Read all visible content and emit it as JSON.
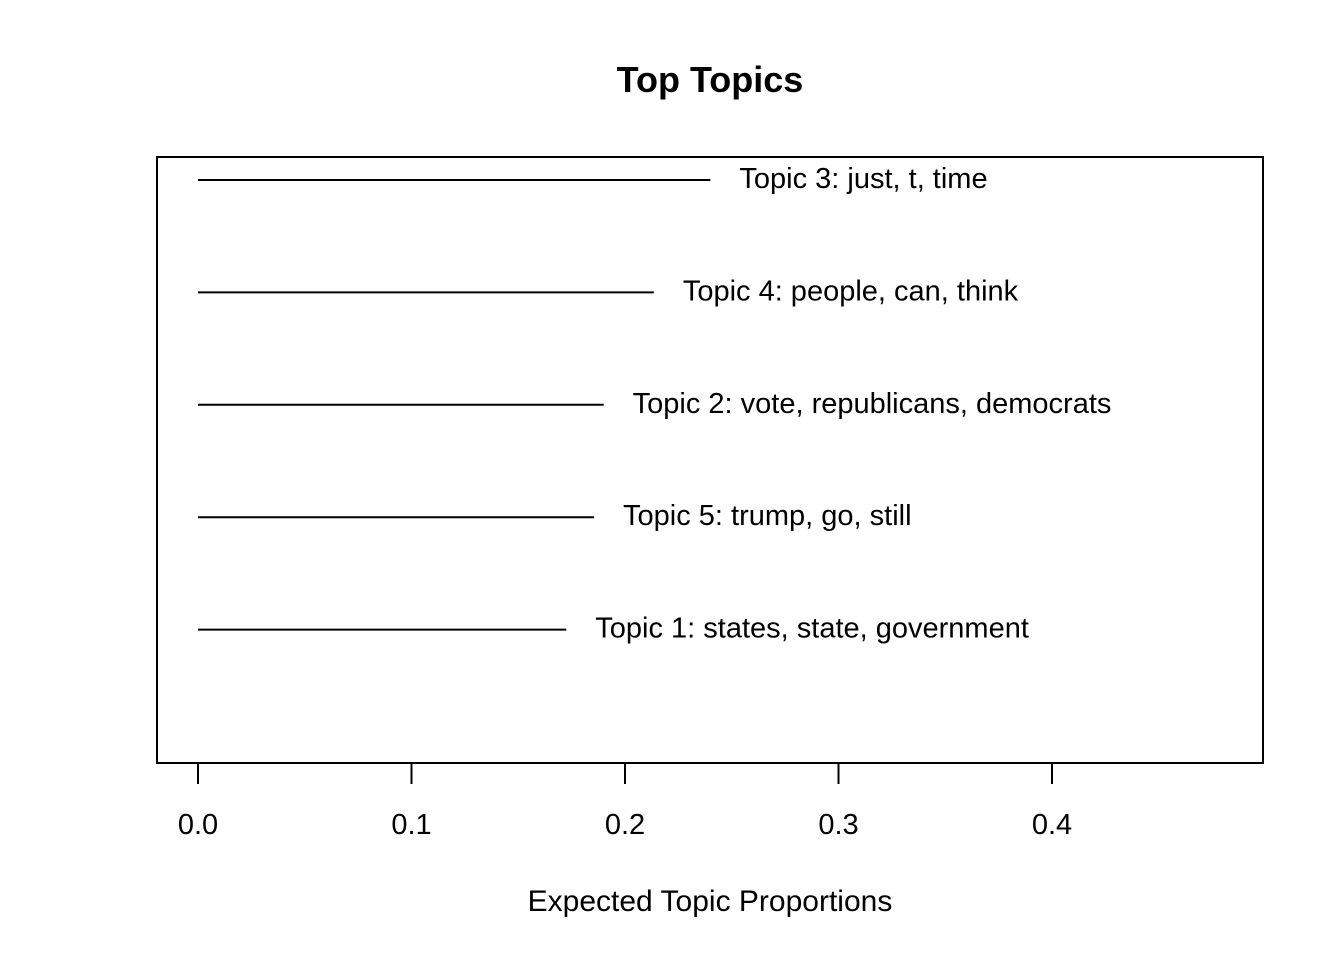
{
  "chart_data": {
    "type": "line",
    "orientation": "horizontal",
    "title": "Top Topics",
    "xlabel": "Expected Topic Proportions",
    "ylabel": "",
    "xlim": [
      0,
      0.5
    ],
    "xticks": [
      "0.0",
      "0.1",
      "0.2",
      "0.3",
      "0.4"
    ],
    "grid": false,
    "legend": "none",
    "colors": {
      "line": "#000000",
      "frame": "#000000",
      "background": "#ffffff"
    },
    "topics": [
      {
        "label": "Topic 3: just, t, time",
        "value": 0.24
      },
      {
        "label": "Topic 4: people, can, think",
        "value": 0.2135
      },
      {
        "label": "Topic 2: vote, republicans, democrats",
        "value": 0.19
      },
      {
        "label": "Topic 5: trump, go, still",
        "value": 0.1855
      },
      {
        "label": "Topic 1: states, state, government",
        "value": 0.1725
      }
    ]
  }
}
